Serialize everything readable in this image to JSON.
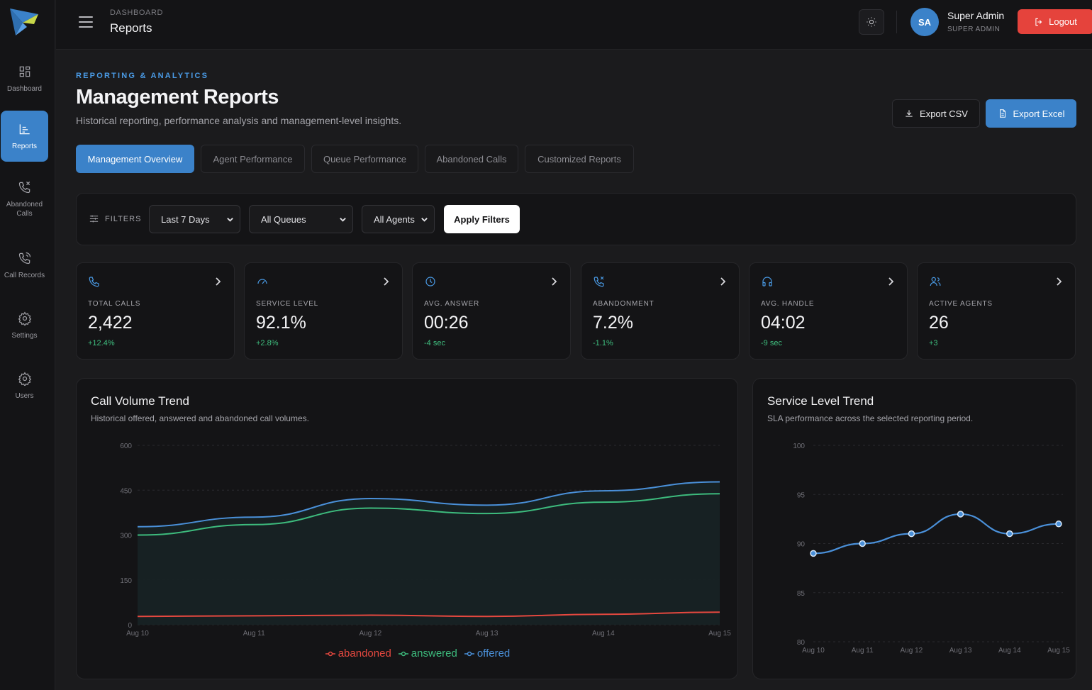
{
  "header": {
    "crumb": "DASHBOARD",
    "title": "Reports",
    "user_name": "Super Admin",
    "user_role": "SUPER ADMIN",
    "avatar_initials": "SA",
    "logout_label": "Logout"
  },
  "sidebar": {
    "items": [
      {
        "label": "Dashboard",
        "icon": "grid-icon"
      },
      {
        "label": "Reports",
        "icon": "bar-chart-icon",
        "active": true
      },
      {
        "label": "Abandoned Calls",
        "icon": "phone-missed-icon"
      },
      {
        "label": "Call Records",
        "icon": "phone-record-icon"
      },
      {
        "label": "Settings",
        "icon": "gear-icon"
      },
      {
        "label": "Users",
        "icon": "gear-icon"
      }
    ]
  },
  "page": {
    "eyebrow": "REPORTING & ANALYTICS",
    "title": "Management Reports",
    "subtitle": "Historical reporting, performance analysis and management-level insights.",
    "export_csv": "Export CSV",
    "export_excel": "Export Excel"
  },
  "tabs": [
    {
      "label": "Management Overview",
      "active": true
    },
    {
      "label": "Agent Performance"
    },
    {
      "label": "Queue Performance"
    },
    {
      "label": "Abandoned Calls"
    },
    {
      "label": "Customized Reports"
    }
  ],
  "filters": {
    "label": "FILTERS",
    "period": "Last 7 Days",
    "queue": "All Queues",
    "agent": "All Agents",
    "apply_label": "Apply Filters"
  },
  "kpis": [
    {
      "label": "TOTAL CALLS",
      "value": "2,422",
      "delta": "+12.4%",
      "icon": "phone-icon"
    },
    {
      "label": "SERVICE LEVEL",
      "value": "92.1%",
      "delta": "+2.8%",
      "icon": "gauge-icon"
    },
    {
      "label": "AVG. ANSWER",
      "value": "00:26",
      "delta": "-4 sec",
      "icon": "clock-icon"
    },
    {
      "label": "ABANDONMENT",
      "value": "7.2%",
      "delta": "-1.1%",
      "icon": "phone-missed-icon"
    },
    {
      "label": "AVG. HANDLE",
      "value": "04:02",
      "delta": "-9 sec",
      "icon": "headphones-icon"
    },
    {
      "label": "ACTIVE AGENTS",
      "value": "26",
      "delta": "+3",
      "icon": "users-icon"
    }
  ],
  "colors": {
    "accent": "#3b82c9",
    "offered": "#4a90d9",
    "answered": "#3dbb7d",
    "abandoned": "#e5483f",
    "positive": "#3fbf7f"
  },
  "chart_data": [
    {
      "type": "area",
      "title": "Call Volume Trend",
      "subtitle": "Historical offered, answered and abandoned call volumes.",
      "categories": [
        "Aug 10",
        "Aug 11",
        "Aug 12",
        "Aug 13",
        "Aug 14",
        "Aug 15"
      ],
      "yticks": [
        0,
        150,
        300,
        450,
        600
      ],
      "ylim": [
        0,
        600
      ],
      "grid": true,
      "legend_position": "bottom",
      "series": [
        {
          "name": "abandoned",
          "values": [
            28,
            30,
            32,
            28,
            35,
            42
          ]
        },
        {
          "name": "answered",
          "values": [
            300,
            335,
            390,
            372,
            410,
            438
          ]
        },
        {
          "name": "offered",
          "values": [
            328,
            360,
            422,
            400,
            448,
            478
          ]
        }
      ]
    },
    {
      "type": "line",
      "title": "Service Level Trend",
      "subtitle": "SLA performance across the selected reporting period.",
      "categories": [
        "Aug 10",
        "Aug 11",
        "Aug 12",
        "Aug 13",
        "Aug 14",
        "Aug 15"
      ],
      "yticks": [
        80,
        85,
        90,
        95,
        100
      ],
      "ylim": [
        80,
        100
      ],
      "grid": true,
      "series": [
        {
          "values": [
            89,
            90,
            91,
            93,
            91,
            92
          ]
        }
      ]
    }
  ]
}
